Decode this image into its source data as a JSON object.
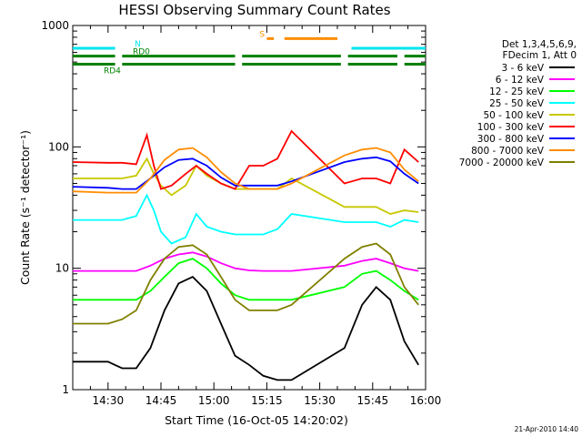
{
  "chart_data": {
    "type": "line",
    "title": "HESSI Observing Summary Count Rates",
    "xlabel": "Start Time (16-Oct-05 14:20:02)",
    "ylabel": "Count Rate (s⁻¹ detector⁻¹)",
    "timestamp": "21-Apr-2010 14:40",
    "y_scale": "log",
    "ylim": [
      1,
      1000
    ],
    "xlim": [
      "14:20",
      "16:00"
    ],
    "x_ticks": [
      "14:30",
      "14:45",
      "15:00",
      "15:15",
      "15:30",
      "15:45",
      "16:00"
    ],
    "y_ticks": [
      "1",
      "10",
      "100",
      "1000"
    ],
    "grid": false,
    "legend_position": "right",
    "legend_header": [
      "Det 1,3,4,5,6,9,",
      "FDecim 1, Att 0"
    ],
    "series": [
      {
        "name": "3 - 6 keV",
        "color": "#000000",
        "x": [
          "14:20",
          "14:30",
          "14:34",
          "14:38",
          "14:42",
          "14:46",
          "14:50",
          "14:54",
          "14:58",
          "15:02",
          "15:06",
          "15:10",
          "15:14",
          "15:18",
          "15:22",
          "15:37",
          "15:42",
          "15:46",
          "15:50",
          "15:54",
          "15:58"
        ],
        "y": [
          1.7,
          1.7,
          1.5,
          1.5,
          2.2,
          4.5,
          7.5,
          8.5,
          6.5,
          3.5,
          1.9,
          1.6,
          1.3,
          1.2,
          1.2,
          2.2,
          5,
          7,
          5.5,
          2.5,
          1.6
        ]
      },
      {
        "name": "6 - 12 keV",
        "color": "#ff00ff",
        "x": [
          "14:20",
          "14:30",
          "14:34",
          "14:38",
          "14:42",
          "14:46",
          "14:50",
          "14:54",
          "14:58",
          "15:02",
          "15:06",
          "15:10",
          "15:14",
          "15:18",
          "15:22",
          "15:37",
          "15:42",
          "15:46",
          "15:50",
          "15:54",
          "15:58"
        ],
        "y": [
          9.5,
          9.5,
          9.5,
          9.5,
          10.5,
          12,
          13,
          13.5,
          12.5,
          11,
          10,
          9.6,
          9.5,
          9.5,
          9.5,
          10.5,
          11.5,
          12,
          11,
          10,
          9.5
        ]
      },
      {
        "name": "12 - 25 keV",
        "color": "#00ff00",
        "x": [
          "14:20",
          "14:30",
          "14:34",
          "14:38",
          "14:42",
          "14:46",
          "14:50",
          "14:54",
          "14:58",
          "15:02",
          "15:06",
          "15:10",
          "15:14",
          "15:18",
          "15:22",
          "15:37",
          "15:42",
          "15:46",
          "15:50",
          "15:54",
          "15:58"
        ],
        "y": [
          5.5,
          5.5,
          5.5,
          5.5,
          6.5,
          8.5,
          11,
          12,
          10,
          7.5,
          6,
          5.5,
          5.5,
          5.5,
          5.5,
          7,
          9,
          9.5,
          8,
          6.5,
          5.5
        ]
      },
      {
        "name": "25 - 50 keV",
        "color": "#00ffff",
        "x": [
          "14:20",
          "14:30",
          "14:34",
          "14:38",
          "14:41",
          "14:43",
          "14:45",
          "14:48",
          "14:52",
          "14:55",
          "14:58",
          "15:02",
          "15:06",
          "15:10",
          "15:14",
          "15:18",
          "15:22",
          "15:37",
          "15:42",
          "15:46",
          "15:50",
          "15:54",
          "15:58"
        ],
        "y": [
          25,
          25,
          25,
          27,
          40,
          30,
          20,
          16,
          18,
          28,
          22,
          20,
          19,
          19,
          19,
          21,
          28,
          24,
          24,
          24,
          22,
          25,
          24
        ]
      },
      {
        "name": "50 - 100 keV",
        "color": "#c8c800",
        "x": [
          "14:20",
          "14:30",
          "14:34",
          "14:38",
          "14:41",
          "14:43",
          "14:45",
          "14:48",
          "14:52",
          "14:55",
          "14:58",
          "15:02",
          "15:06",
          "15:10",
          "15:14",
          "15:18",
          "15:22",
          "15:37",
          "15:42",
          "15:46",
          "15:50",
          "15:54",
          "15:58"
        ],
        "y": [
          55,
          55,
          55,
          58,
          80,
          60,
          48,
          40,
          48,
          70,
          58,
          50,
          45,
          45,
          45,
          45,
          55,
          32,
          32,
          32,
          28,
          30,
          29
        ]
      },
      {
        "name": "100 - 300 keV",
        "color": "#ff0000",
        "x": [
          "14:20",
          "14:30",
          "14:34",
          "14:38",
          "14:41",
          "14:43",
          "14:45",
          "14:48",
          "14:52",
          "14:55",
          "14:58",
          "15:02",
          "15:06",
          "15:10",
          "15:14",
          "15:18",
          "15:22",
          "15:37",
          "15:42",
          "15:46",
          "15:50",
          "15:54",
          "15:58"
        ],
        "y": [
          75,
          74,
          74,
          72,
          125,
          70,
          45,
          48,
          60,
          70,
          60,
          50,
          45,
          70,
          70,
          80,
          135,
          50,
          55,
          55,
          50,
          95,
          75
        ]
      },
      {
        "name": "300 - 800 keV",
        "color": "#0000ff",
        "x": [
          "14:20",
          "14:30",
          "14:34",
          "14:38",
          "14:42",
          "14:46",
          "14:50",
          "14:54",
          "14:58",
          "15:02",
          "15:06",
          "15:10",
          "15:14",
          "15:18",
          "15:22",
          "15:37",
          "15:42",
          "15:46",
          "15:50",
          "15:54",
          "15:58"
        ],
        "y": [
          47,
          46,
          45,
          45,
          55,
          68,
          78,
          80,
          70,
          56,
          48,
          48,
          48,
          48,
          52,
          75,
          80,
          82,
          76,
          60,
          50
        ]
      },
      {
        "name": "800 - 7000 keV",
        "color": "#ff8c00",
        "x": [
          "14:20",
          "14:30",
          "14:34",
          "14:38",
          "14:42",
          "14:46",
          "14:50",
          "14:54",
          "14:58",
          "15:02",
          "15:06",
          "15:10",
          "15:14",
          "15:18",
          "15:22",
          "15:37",
          "15:42",
          "15:46",
          "15:50",
          "15:54",
          "15:58"
        ],
        "y": [
          43,
          42,
          42,
          42,
          55,
          78,
          95,
          98,
          82,
          62,
          50,
          45,
          45,
          45,
          50,
          85,
          95,
          98,
          90,
          65,
          52
        ]
      },
      {
        "name": "7000 - 20000 keV",
        "color": "#808000",
        "x": [
          "14:20",
          "14:30",
          "14:34",
          "14:38",
          "14:42",
          "14:46",
          "14:50",
          "14:54",
          "14:58",
          "15:02",
          "15:06",
          "15:10",
          "15:14",
          "15:18",
          "15:22",
          "15:37",
          "15:42",
          "15:46",
          "15:50",
          "15:54",
          "15:58"
        ],
        "y": [
          3.5,
          3.5,
          3.8,
          4.5,
          8,
          12,
          15,
          15.5,
          13,
          8.5,
          5.5,
          4.5,
          4.5,
          4.5,
          5,
          12,
          15,
          16,
          13,
          7,
          5
        ]
      }
    ],
    "state_bars": [
      {
        "label": "N",
        "color": "#00e5ee",
        "level": 650,
        "segments": [
          [
            "14:20",
            "14:32"
          ],
          [
            "15:39",
            "16:00"
          ]
        ]
      },
      {
        "label": "RD0",
        "color": "#008000",
        "level": 560,
        "segments": [
          [
            "14:20",
            "14:32"
          ],
          [
            "14:34",
            "15:06"
          ],
          [
            "15:08",
            "15:36"
          ],
          [
            "15:38",
            "15:52"
          ],
          [
            "15:54",
            "16:00"
          ]
        ]
      },
      {
        "label": "RD4",
        "color": "#008000",
        "level": 480,
        "segments": [
          [
            "14:20",
            "14:32"
          ],
          [
            "14:34",
            "15:06"
          ],
          [
            "15:08",
            "15:36"
          ],
          [
            "15:38",
            "15:52"
          ],
          [
            "15:54",
            "16:00"
          ]
        ]
      },
      {
        "label": "S",
        "color": "#ff8c00",
        "level": 780,
        "segments": [
          [
            "15:15",
            "15:17"
          ],
          [
            "15:20",
            "15:35"
          ]
        ]
      }
    ]
  }
}
